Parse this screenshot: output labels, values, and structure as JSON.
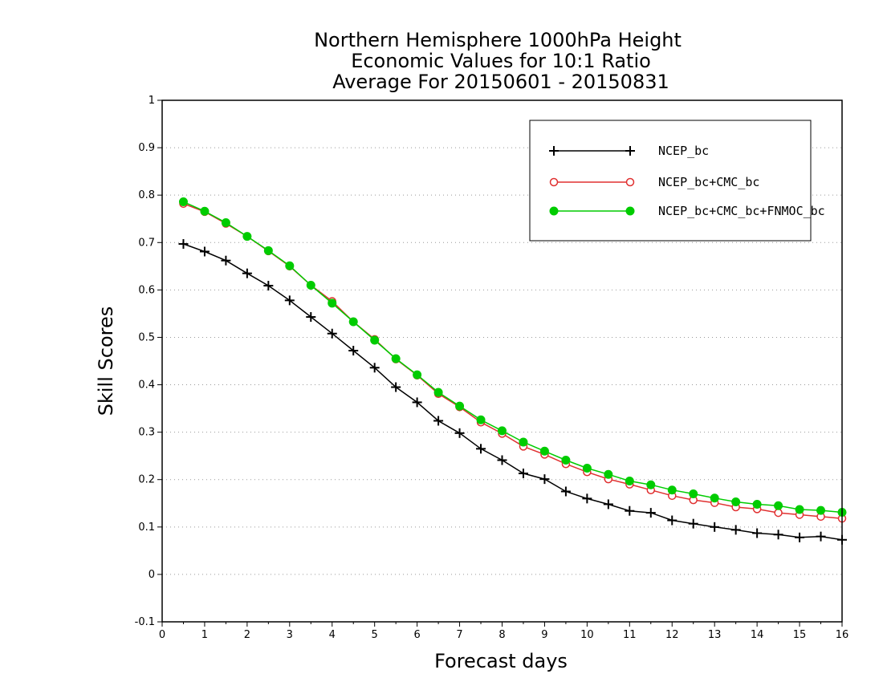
{
  "chart_data": {
    "type": "line",
    "title": [
      "Northern Hemisphere 1000hPa Height",
      "Economic Values for 10:1 Ratio",
      "Average For 20150601 - 20150831"
    ],
    "xlabel": "Forecast days",
    "ylabel": "Skill Scores",
    "xlim": [
      0,
      16
    ],
    "ylim": [
      -0.1,
      1
    ],
    "x_ticks": [
      "0",
      "1",
      "2",
      "3",
      "4",
      "5",
      "6",
      "7",
      "8",
      "9",
      "10",
      "11",
      "12",
      "13",
      "14",
      "15",
      "16"
    ],
    "y_ticks": [
      "-0.1",
      "0",
      "0.1",
      "0.2",
      "0.3",
      "0.4",
      "0.5",
      "0.6",
      "0.7",
      "0.8",
      "0.9",
      "1"
    ],
    "grid": "horizontal-dotted",
    "legend_position": "top-right",
    "x": [
      0.5,
      1,
      1.5,
      2,
      2.5,
      3,
      3.5,
      4,
      4.5,
      5,
      5.5,
      6,
      6.5,
      7,
      7.5,
      8,
      8.5,
      9,
      9.5,
      10,
      10.5,
      11,
      11.5,
      12,
      12.5,
      13,
      13.5,
      14,
      14.5,
      15,
      15.5,
      16
    ],
    "series": [
      {
        "name": "NCEP_bc",
        "color": "#000000",
        "marker": "plus",
        "values": [
          0.697,
          0.681,
          0.662,
          0.635,
          0.609,
          0.578,
          0.543,
          0.508,
          0.472,
          0.436,
          0.395,
          0.363,
          0.324,
          0.298,
          0.265,
          0.241,
          0.213,
          0.201,
          0.175,
          0.16,
          0.148,
          0.134,
          0.13,
          0.114,
          0.107,
          0.1,
          0.094,
          0.087,
          0.084,
          0.078,
          0.08,
          0.073
        ]
      },
      {
        "name": "NCEP_bc+CMC_bc",
        "color": "#e03030",
        "marker": "open-circle",
        "values": [
          0.782,
          0.765,
          0.74,
          0.713,
          0.682,
          0.65,
          0.61,
          0.576,
          0.533,
          0.496,
          0.454,
          0.42,
          0.381,
          0.353,
          0.321,
          0.297,
          0.27,
          0.253,
          0.233,
          0.216,
          0.201,
          0.19,
          0.178,
          0.166,
          0.157,
          0.151,
          0.142,
          0.138,
          0.13,
          0.126,
          0.122,
          0.118
        ]
      },
      {
        "name": "NCEP_bc+CMC_bc+FNMOC_bc",
        "color": "#00cc00",
        "marker": "filled-circle",
        "values": [
          0.786,
          0.766,
          0.742,
          0.713,
          0.683,
          0.651,
          0.61,
          0.572,
          0.533,
          0.494,
          0.455,
          0.421,
          0.384,
          0.355,
          0.326,
          0.303,
          0.279,
          0.26,
          0.241,
          0.224,
          0.211,
          0.197,
          0.189,
          0.178,
          0.17,
          0.161,
          0.153,
          0.148,
          0.145,
          0.137,
          0.135,
          0.131
        ]
      }
    ]
  }
}
